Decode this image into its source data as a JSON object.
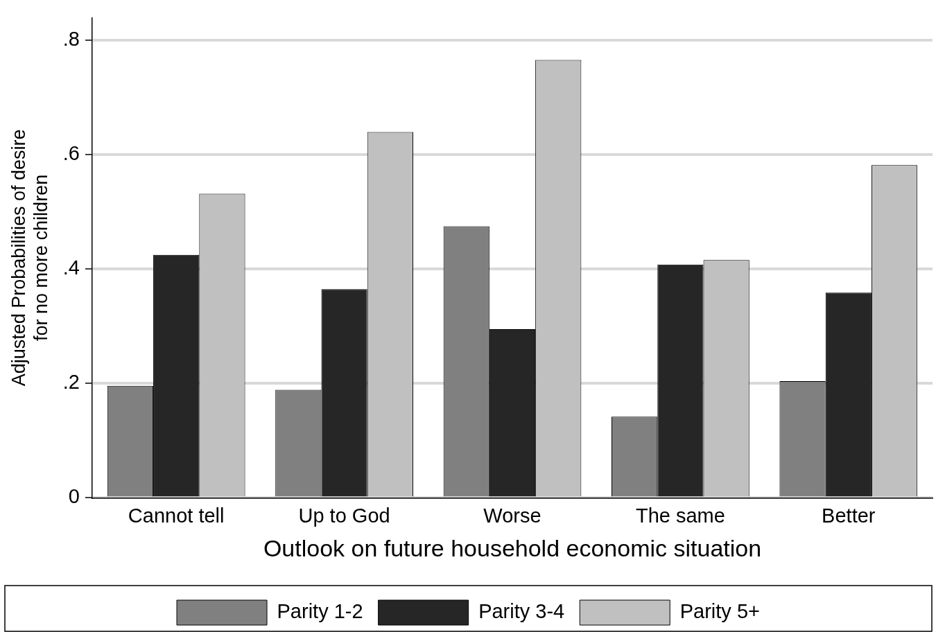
{
  "chart_data": {
    "type": "bar",
    "xlabel": "Outlook on future household economic situation",
    "ylabel": "Adjusted Probabilities of desire\nfor no more children",
    "categories": [
      "Cannot tell",
      "Up to God",
      "Worse",
      "The same",
      "Better"
    ],
    "series": [
      {
        "name": "Parity 1-2",
        "color": "#808080",
        "values": [
          0.196,
          0.189,
          0.475,
          0.142,
          0.204
        ]
      },
      {
        "name": "Parity 3-4",
        "color": "#262626",
        "values": [
          0.425,
          0.365,
          0.295,
          0.408,
          0.359
        ]
      },
      {
        "name": "Parity 5+",
        "color": "#c0c0c0",
        "values": [
          0.532,
          0.64,
          0.766,
          0.416,
          0.582
        ]
      }
    ],
    "ylim": [
      0,
      0.84
    ],
    "yticks": [
      0,
      {
        "value": 0.2,
        "label": ".2"
      },
      {
        "value": 0.4,
        "label": ".4"
      },
      {
        "value": 0.6,
        "label": ".6"
      },
      {
        "value": 0.8,
        "label": ".8"
      }
    ],
    "grid": "y",
    "legend": "bottom"
  }
}
